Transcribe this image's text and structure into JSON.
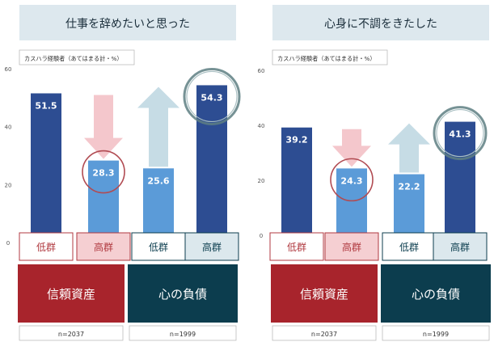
{
  "colors": {
    "dark_bar": "#2d4d92",
    "light_bar": "#5b9bd8",
    "title_bg": "#dde8ee",
    "trust_bg": "#a8242c",
    "debt_bg": "#0c3d4e",
    "low_border": "#b03a40",
    "high_fill_pink": "#f5cfd2",
    "high_fill_blue": "#dce8ed",
    "arrow_pink": "#f4c7cc",
    "arrow_blue": "#c6dce5",
    "circle_red": "#b14b52",
    "circle_teal": "#5e7f83"
  },
  "chart_data": [
    {
      "type": "bar",
      "title": "仕事を辞めたいと思った",
      "legend_note": "カスハラ経験者（あてはまる計・%）",
      "ylim": [
        0,
        60
      ],
      "yticks": [
        0,
        20,
        40,
        60
      ],
      "categories": [
        "低群",
        "高群",
        "低群",
        "高群"
      ],
      "values": [
        51.5,
        28.3,
        25.6,
        54.3
      ],
      "value_labels": [
        "51.5",
        "28.3",
        "25.6",
        "54.3"
      ],
      "groups": [
        {
          "label": "信頼資産",
          "n": "n=2037"
        },
        {
          "label": "心の負債",
          "n": "n=1999"
        }
      ],
      "highlighted": [
        1,
        3
      ]
    },
    {
      "type": "bar",
      "title": "心身に不調をきたした",
      "legend_note": "カスハラ経験者（あてはまる計・%）",
      "ylim": [
        0,
        60
      ],
      "yticks": [
        0,
        20,
        40,
        60
      ],
      "categories": [
        "低群",
        "高群",
        "低群",
        "高群"
      ],
      "values": [
        39.2,
        24.3,
        22.2,
        41.3
      ],
      "value_labels": [
        "39.2",
        "24.3",
        "22.2",
        "41.3"
      ],
      "groups": [
        {
          "label": "信頼資産",
          "n": "n=2037"
        },
        {
          "label": "心の負債",
          "n": "n=1999"
        }
      ],
      "highlighted": [
        1,
        3
      ]
    }
  ]
}
